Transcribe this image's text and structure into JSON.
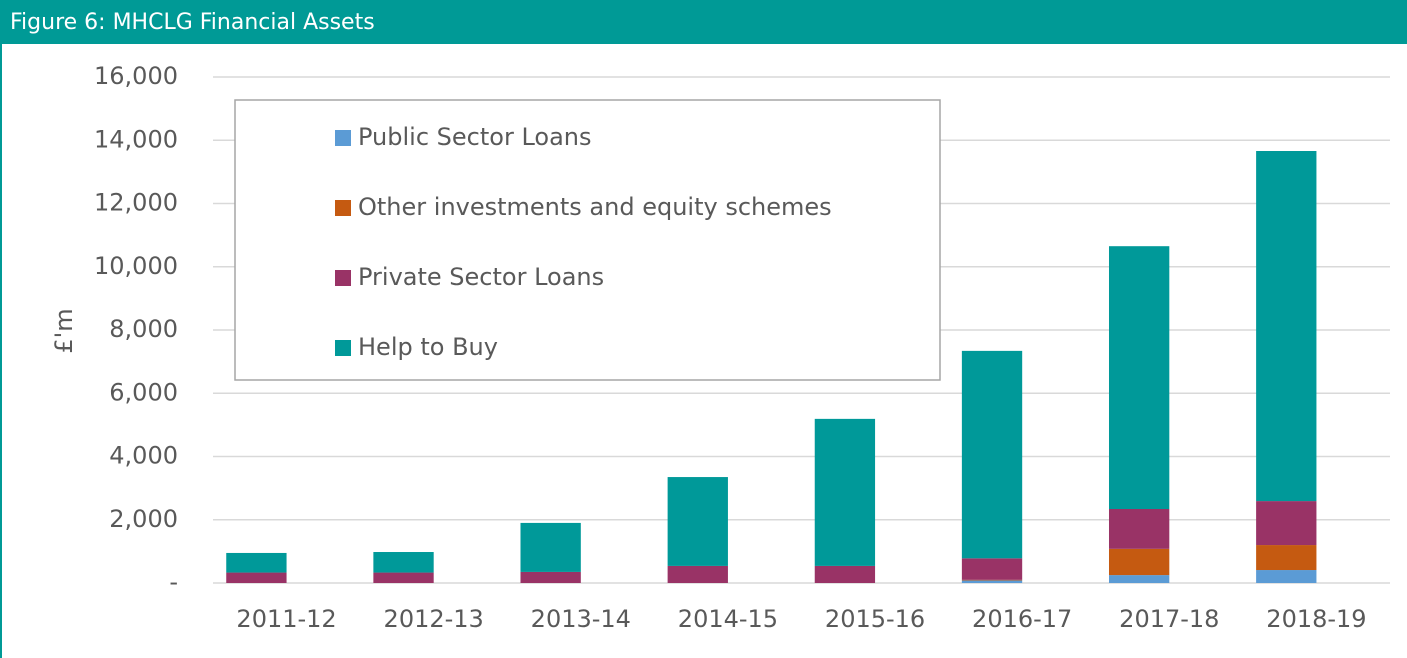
{
  "chart_data": {
    "type": "stacked_bar",
    "title": "Figure 6: MHCLG Financial Assets",
    "ylabel": "£'m",
    "categories": [
      "2011-12",
      "2012-13",
      "2013-14",
      "2014-15",
      "2015-16",
      "2016-17",
      "2017-18",
      "2018-19"
    ],
    "series": [
      {
        "name": "Public Sector Loans",
        "color": "#5b9bd5",
        "values": [
          0,
          0,
          0,
          0,
          0,
          80,
          250,
          410
        ]
      },
      {
        "name": "Other investments and equity schemes",
        "color": "#c55a11",
        "values": [
          0,
          0,
          0,
          0,
          0,
          20,
          830,
          790
        ]
      },
      {
        "name": "Private Sector Loans",
        "color": "#993366",
        "values": [
          330,
          330,
          350,
          540,
          540,
          680,
          1260,
          1390
        ]
      },
      {
        "name": "Help to Buy",
        "color": "#009999",
        "values": [
          620,
          650,
          1550,
          2810,
          4650,
          6560,
          8310,
          11070
        ]
      }
    ],
    "ylim": [
      0,
      16000
    ],
    "yticks": [
      {
        "value": 0,
        "label": "-"
      },
      {
        "value": 2000,
        "label": "2,000"
      },
      {
        "value": 4000,
        "label": "4,000"
      },
      {
        "value": 6000,
        "label": "6,000"
      },
      {
        "value": 8000,
        "label": "8,000"
      },
      {
        "value": 10000,
        "label": "10,000"
      },
      {
        "value": 12000,
        "label": "12,000"
      },
      {
        "value": 14000,
        "label": "14,000"
      },
      {
        "value": 16000,
        "label": "16,000"
      }
    ],
    "grid": true,
    "legend": "upper left"
  }
}
